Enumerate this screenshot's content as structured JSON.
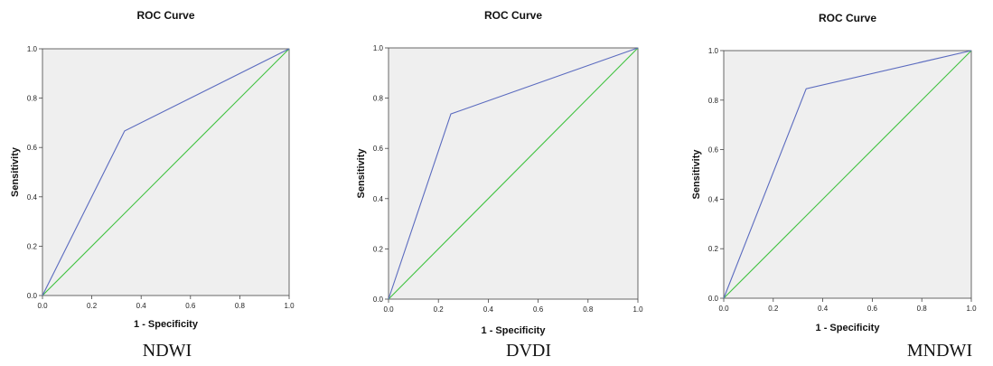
{
  "chart_data": [
    {
      "type": "line",
      "title": "ROC Curve",
      "xlabel": "1 - Specificity",
      "ylabel": "Sensitivity",
      "caption": "NDWI",
      "xlim": [
        0,
        1
      ],
      "ylim": [
        0,
        1
      ],
      "xticks": [
        "0.0",
        "0.2",
        "0.4",
        "0.6",
        "0.8",
        "1.0"
      ],
      "yticks": [
        "0.0",
        "0.2",
        "0.4",
        "0.6",
        "0.8",
        "1.0"
      ],
      "grid": false,
      "series": [
        {
          "x": [
            0,
            0.333,
            1
          ],
          "y": [
            0,
            0.667,
            1
          ],
          "color": "#5b6bbf"
        },
        {
          "x": [
            0,
            1
          ],
          "y": [
            0,
            1
          ],
          "color": "#3fc23f"
        }
      ]
    },
    {
      "type": "line",
      "title": "ROC Curve",
      "xlabel": "1 - Specificity",
      "ylabel": "Sensitivity",
      "caption": "DVDI",
      "xlim": [
        0,
        1
      ],
      "ylim": [
        0,
        1
      ],
      "xticks": [
        "0.0",
        "0.2",
        "0.4",
        "0.6",
        "0.8",
        "1.0"
      ],
      "yticks": [
        "0.0",
        "0.2",
        "0.4",
        "0.6",
        "0.8",
        "1.0"
      ],
      "grid": false,
      "series": [
        {
          "x": [
            0,
            0.25,
            1
          ],
          "y": [
            0,
            0.737,
            1
          ],
          "color": "#5b6bbf"
        },
        {
          "x": [
            0,
            1
          ],
          "y": [
            0,
            1
          ],
          "color": "#3fc23f"
        }
      ]
    },
    {
      "type": "line",
      "title": "ROC Curve",
      "xlabel": "1 - Specificity",
      "ylabel": "Sensitivity",
      "caption": "MNDWI",
      "xlim": [
        0,
        1
      ],
      "ylim": [
        0,
        1
      ],
      "xticks": [
        "0.0",
        "0.2",
        "0.4",
        "0.6",
        "0.8",
        "1.0"
      ],
      "yticks": [
        "0.0",
        "0.2",
        "0.4",
        "0.6",
        "0.8",
        "1.0"
      ],
      "grid": false,
      "series": [
        {
          "x": [
            0,
            0.333,
            1
          ],
          "y": [
            0,
            0.846,
            1
          ],
          "color": "#5b6bbf"
        },
        {
          "x": [
            0,
            1
          ],
          "y": [
            0,
            1
          ],
          "color": "#3fc23f"
        }
      ]
    }
  ],
  "colors": {
    "plot_background": "#efefef",
    "frame": "#444444"
  }
}
